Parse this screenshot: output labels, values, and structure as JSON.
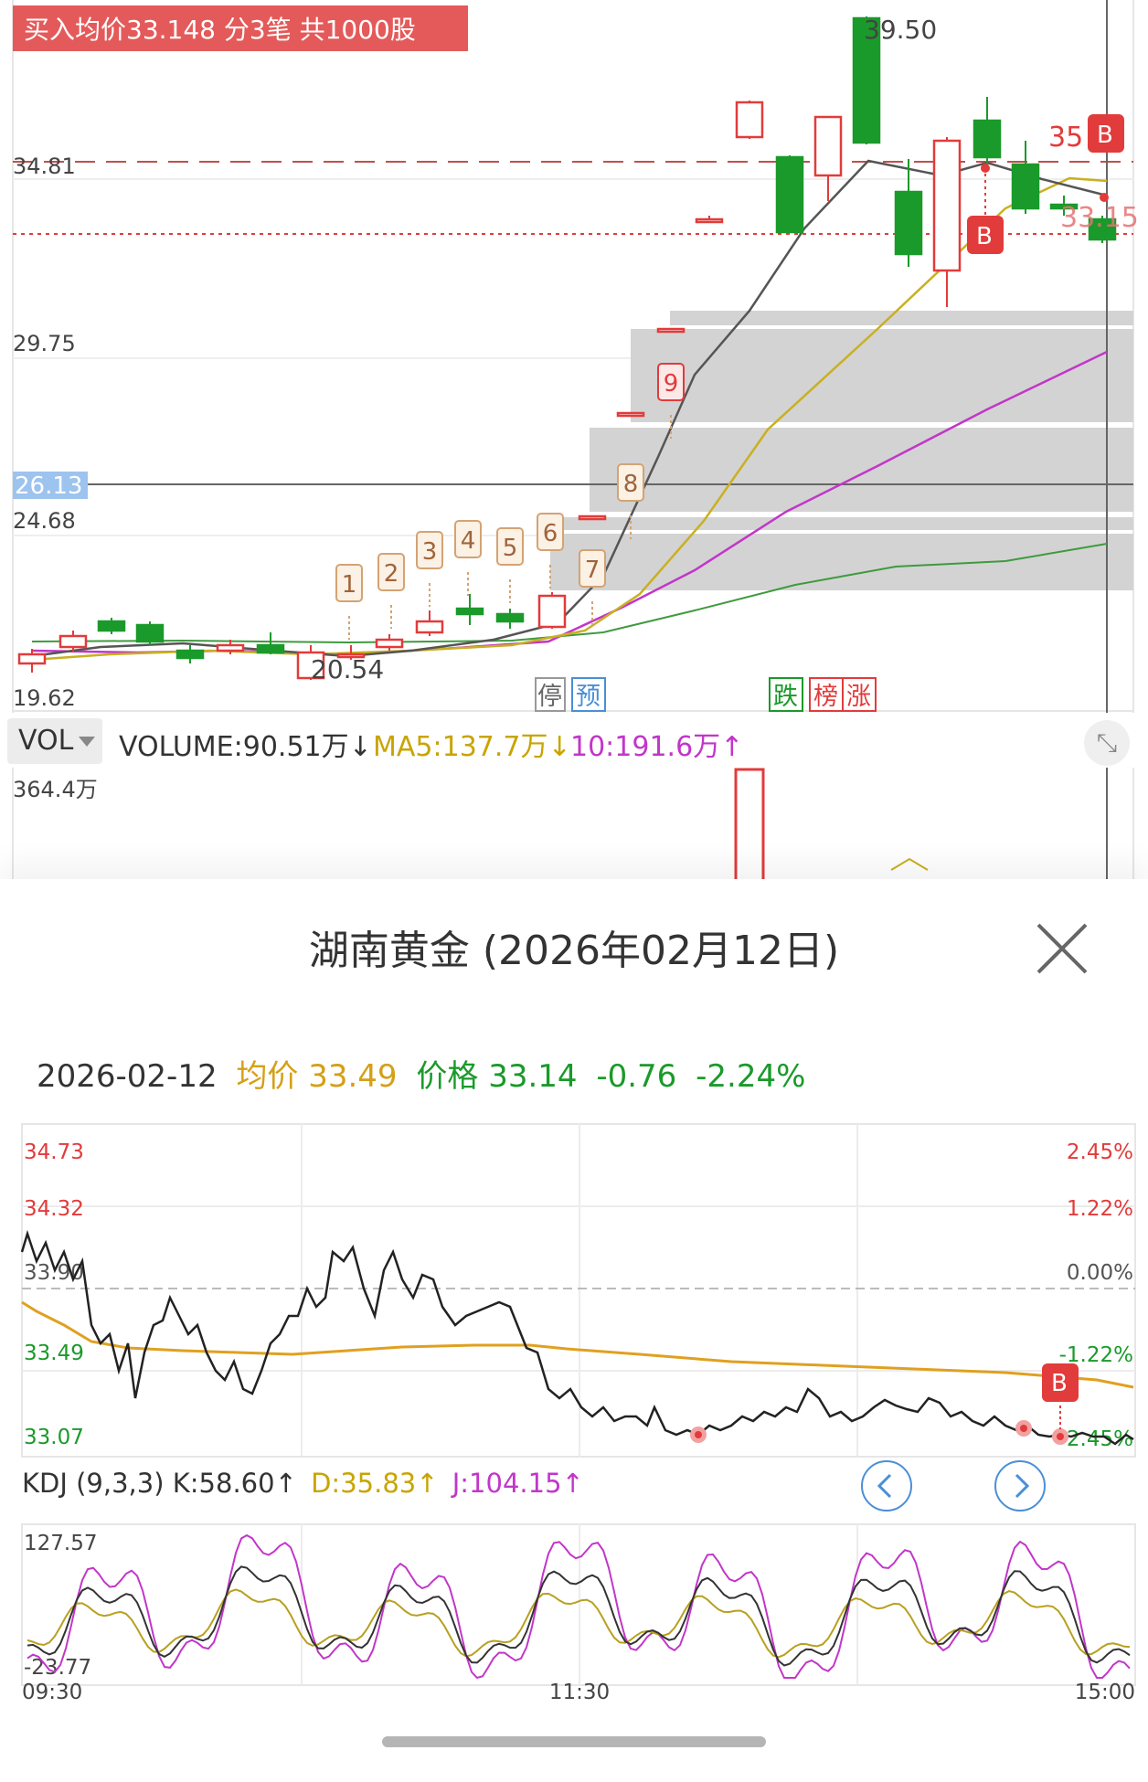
{
  "top_kline": {
    "banner": "买入均价33.148 分3笔 共1000股",
    "y_labels": [
      "34.81",
      "29.75",
      "26.13",
      "24.68",
      "19.62"
    ],
    "high_label": "39.50",
    "low_label": "20.54",
    "price_tag_35": "35",
    "price_tag_33": "33.15",
    "buy_marks": [
      "B",
      "B"
    ],
    "limit_numbers": [
      "1",
      "2",
      "3",
      "4",
      "5",
      "6",
      "7",
      "8",
      "9"
    ],
    "bottom_tags": {
      "stop": "停",
      "preview": "预",
      "fall": "跌",
      "list": "榜",
      "rise": "涨"
    },
    "colors": {
      "up": "#e23b3b",
      "down": "#1a9a2a",
      "ma5": "#555555",
      "ma10": "#c9b020",
      "ma20": "#c236c9",
      "ma30": "#3f9a3f",
      "limit_box": "#d4a373"
    }
  },
  "volume_bar": {
    "selector": "VOL",
    "volume": "VOLUME:90.51万↓",
    "ma5": "MA5:137.7万↓",
    "ma10": "10:191.6万↑",
    "max_label": "364.4万",
    "expand_icon": "expand-icon"
  },
  "sheet": {
    "title": "湖南黄金 (2026年02月12日)",
    "date": "2026-02-12",
    "avg_label": "均价",
    "avg_value": "33.49",
    "price_label": "价格",
    "price_value": "33.14",
    "change": "-0.76",
    "change_pct": "-2.24%",
    "left_axis": [
      "34.73",
      "34.32",
      "33.90",
      "33.49",
      "33.07"
    ],
    "right_axis": [
      "2.45%",
      "1.22%",
      "0.00%",
      "-1.22%",
      "-2.45%"
    ],
    "buy_mark": "B",
    "kdj": {
      "label": "KDJ (9,3,3)",
      "k": "K:58.60↑",
      "d": "D:35.83↑",
      "j": "J:104.15↑",
      "max": "127.57",
      "min": "-23.77"
    },
    "time_axis": [
      "09:30",
      "11:30",
      "15:00"
    ]
  }
}
